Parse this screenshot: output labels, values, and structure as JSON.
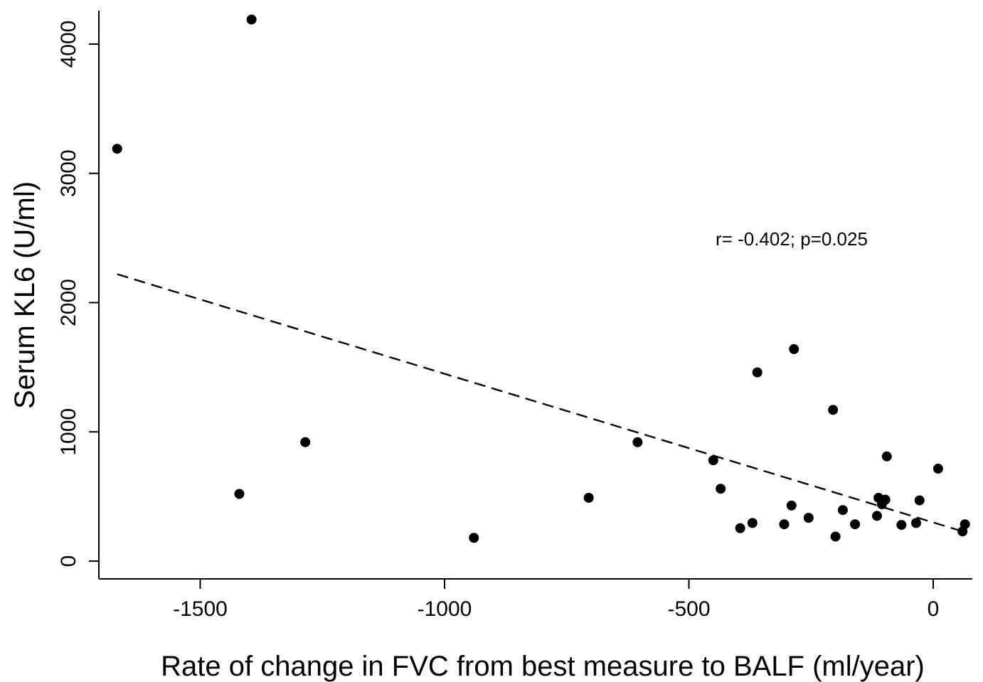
{
  "chart_data": {
    "type": "scatter",
    "title": "",
    "xlabel": "Rate of change in FVC from best measure to BALF (ml/year)",
    "ylabel": "Serum KL6 (U/ml)",
    "xlim": [
      -1700,
      70
    ],
    "ylim": [
      -150,
      4300
    ],
    "xticks": [
      -1500,
      -1000,
      -500,
      0
    ],
    "yticks": [
      0,
      1000,
      2000,
      3000,
      4000
    ],
    "grid": false,
    "annotation": "r= -0.402; p=0.025",
    "points": [
      {
        "x": -1670,
        "y": 3190
      },
      {
        "x": -1395,
        "y": 4190
      },
      {
        "x": -1420,
        "y": 520
      },
      {
        "x": -1285,
        "y": 920
      },
      {
        "x": -940,
        "y": 180
      },
      {
        "x": -705,
        "y": 490
      },
      {
        "x": -605,
        "y": 920
      },
      {
        "x": -450,
        "y": 780
      },
      {
        "x": -435,
        "y": 560
      },
      {
        "x": -395,
        "y": 255
      },
      {
        "x": -370,
        "y": 295
      },
      {
        "x": -360,
        "y": 1460
      },
      {
        "x": -305,
        "y": 285
      },
      {
        "x": -290,
        "y": 430
      },
      {
        "x": -285,
        "y": 1640
      },
      {
        "x": -255,
        "y": 335
      },
      {
        "x": -205,
        "y": 1170
      },
      {
        "x": -200,
        "y": 190
      },
      {
        "x": -185,
        "y": 395
      },
      {
        "x": -160,
        "y": 285
      },
      {
        "x": -115,
        "y": 350
      },
      {
        "x": -112,
        "y": 490
      },
      {
        "x": -105,
        "y": 440
      },
      {
        "x": -98,
        "y": 475
      },
      {
        "x": -95,
        "y": 810
      },
      {
        "x": -65,
        "y": 280
      },
      {
        "x": -35,
        "y": 295
      },
      {
        "x": -28,
        "y": 470
      },
      {
        "x": 10,
        "y": 715
      },
      {
        "x": 60,
        "y": 230
      },
      {
        "x": 65,
        "y": 285
      }
    ],
    "trendline": {
      "style": "dashed",
      "x": [
        -1670,
        60
      ],
      "y": [
        2220,
        230
      ]
    },
    "colors": {
      "points": "#000000",
      "line": "#000000",
      "axes": "#000000",
      "background": "#ffffff"
    }
  }
}
